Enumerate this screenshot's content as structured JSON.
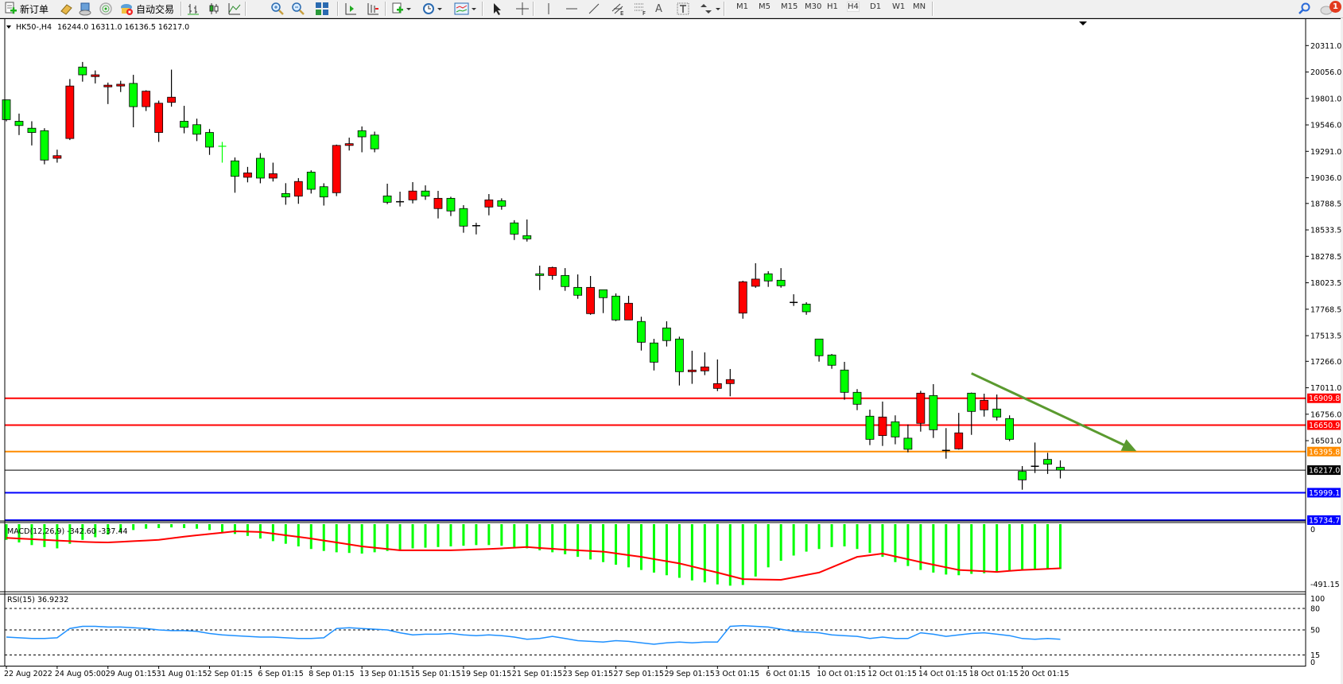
{
  "toolbar": {
    "new_order_label": "新订单",
    "auto_trading_label": "自动交易",
    "timeframes": [
      "M1",
      "M5",
      "M15",
      "M30",
      "H1",
      "H4",
      "D1",
      "W1",
      "MN"
    ],
    "active_timeframe": "H4",
    "notification_count": "1",
    "icons": [
      "new-order-icon",
      "market-watch-icon",
      "navigator-icon",
      "signals-icon",
      "auto-trading-icon",
      "bar-chart-icon",
      "candlestick-icon",
      "line-chart-icon",
      "zoom-in-icon",
      "zoom-out-icon",
      "tile-windows-icon",
      "auto-scroll-icon",
      "chart-shift-icon",
      "new-chart-icon",
      "periods-icon",
      "indicators-icon",
      "cursor-icon",
      "crosshair-icon",
      "vertical-line-icon",
      "horizontal-line-icon",
      "trendline-icon",
      "equidistant-channel-icon",
      "fibonacci-icon",
      "text-icon",
      "text-label-icon",
      "arrows-icon",
      "search-icon",
      "notifications-icon"
    ]
  },
  "chart_header": {
    "symbol": "HK50-,H4",
    "ohlc_text": "16244.0 16311.0 16136.5 16217.0"
  },
  "price_axis": {
    "labels": [
      "20311.0",
      "20056.0",
      "19801.0",
      "19546.0",
      "19291.0",
      "19036.0",
      "18788.5",
      "18533.5",
      "18278.5",
      "18023.5",
      "17768.5",
      "17513.5",
      "17266.0",
      "17011.0",
      "16756.0",
      "16501.0"
    ],
    "values": [
      20311.0,
      20056.0,
      19801.0,
      19546.0,
      19291.0,
      19036.0,
      18788.5,
      18533.5,
      18278.5,
      18023.5,
      17768.5,
      17513.5,
      17266.0,
      17011.0,
      16756.0,
      16501.0
    ]
  },
  "levels": [
    {
      "label": "16909.8",
      "value": 16909.8,
      "color": "#ff0000"
    },
    {
      "label": "16650.9",
      "value": 16650.9,
      "color": "#ff0000"
    },
    {
      "label": "16395.8",
      "value": 16395.8,
      "color": "#ff8c00"
    },
    {
      "label": "16217.0",
      "value": 16217.0,
      "color": "#000000"
    },
    {
      "label": "15999.1",
      "value": 15999.1,
      "color": "#0000ff"
    },
    {
      "label": "15734.7",
      "value": 15734.7,
      "color": "#0000ff"
    }
  ],
  "macd": {
    "title": "MACD(12,26,9) -342.60 -337.44",
    "axis_labels": [
      "0",
      "-491.15"
    ],
    "axis_values": [
      0,
      -491.15
    ],
    "histogram_color": "#00ff00",
    "signal_color": "#ff0000"
  },
  "rsi": {
    "title": "RSI(15) 36.9232",
    "axis_labels": [
      "100",
      "80",
      "50",
      "15",
      "0"
    ],
    "axis_values": [
      100,
      80,
      50,
      15,
      0
    ],
    "levels": [
      80,
      50,
      15
    ],
    "line_color": "#1e90ff"
  },
  "time_axis": {
    "labels": [
      "22 Aug 2022",
      "24 Aug 05:00",
      "29 Aug 01:15",
      "31 Aug 01:15",
      "2 Sep 01:15",
      "6 Sep 01:15",
      "8 Sep 01:15",
      "13 Sep 01:15",
      "15 Sep 01:15",
      "19 Sep 01:15",
      "21 Sep 01:15",
      "23 Sep 01:15",
      "27 Sep 01:15",
      "29 Sep 01:15",
      "3 Oct 01:15",
      "6 Oct 01:15",
      "10 Oct 01:15",
      "12 Oct 01:15",
      "14 Oct 01:15",
      "18 Oct 01:15",
      "20 Oct 01:15"
    ],
    "label_bar_step": 4
  },
  "chart_data": {
    "type": "candlestick",
    "symbol": "HK50-",
    "timeframe": "H4",
    "bullish_color": "#ff0000",
    "bearish_color": "#00ff00",
    "ylim": [
      15700,
      20400
    ],
    "ohlc": [
      [
        19788,
        19790,
        19580,
        19597
      ],
      [
        19581,
        19655,
        19448,
        19540
      ],
      [
        19514,
        19581,
        19348,
        19473
      ],
      [
        19490,
        19514,
        19166,
        19207
      ],
      [
        19224,
        19307,
        19182,
        19249
      ],
      [
        19415,
        19988,
        19400,
        19921
      ],
      [
        20104,
        20153,
        19963,
        20029
      ],
      [
        20012,
        20071,
        19946,
        20029
      ],
      [
        19913,
        19954,
        19747,
        19929
      ],
      [
        19921,
        19971,
        19863,
        19938
      ],
      [
        19946,
        20029,
        19523,
        19722
      ],
      [
        19722,
        19880,
        19680,
        19871
      ],
      [
        19473,
        19780,
        19382,
        19755
      ],
      [
        19763,
        20079,
        19722,
        19813
      ],
      [
        19581,
        19730,
        19465,
        19523
      ],
      [
        19548,
        19606,
        19390,
        19456
      ],
      [
        19473,
        19506,
        19257,
        19332
      ],
      [
        19340,
        19382,
        19182,
        19338
      ],
      [
        19199,
        19232,
        18892,
        19050
      ],
      [
        19041,
        19141,
        18992,
        19083
      ],
      [
        19224,
        19274,
        18983,
        19033
      ],
      [
        19033,
        19182,
        19000,
        19075
      ],
      [
        18884,
        18984,
        18776,
        18851
      ],
      [
        18859,
        19033,
        18785,
        19000
      ],
      [
        19091,
        19108,
        18884,
        18925
      ],
      [
        18950,
        18983,
        18768,
        18851
      ],
      [
        18892,
        19356,
        18859,
        19348
      ],
      [
        19348,
        19423,
        19299,
        19365
      ],
      [
        19490,
        19531,
        19282,
        19431
      ],
      [
        19448,
        19481,
        19282,
        19315
      ],
      [
        18861,
        18979,
        18782,
        18800
      ],
      [
        18805,
        18902,
        18759,
        18805
      ],
      [
        18823,
        18994,
        18789,
        18908
      ],
      [
        18908,
        18963,
        18823,
        18859
      ],
      [
        18739,
        18910,
        18644,
        18838
      ],
      [
        18838,
        18853,
        18667,
        18716
      ],
      [
        18739,
        18772,
        18506,
        18570
      ],
      [
        18574,
        18602,
        18490,
        18574
      ],
      [
        18754,
        18879,
        18674,
        18823
      ],
      [
        18815,
        18838,
        18728,
        18762
      ],
      [
        18601,
        18627,
        18436,
        18493
      ],
      [
        18478,
        18634,
        18421,
        18447
      ],
      [
        18110,
        18189,
        17953,
        18094
      ],
      [
        18094,
        18179,
        18053,
        18171
      ],
      [
        18094,
        18165,
        17946,
        17987
      ],
      [
        17979,
        18104,
        17869,
        17903
      ],
      [
        17726,
        18089,
        17715,
        17979
      ],
      [
        17956,
        17956,
        17731,
        17880
      ],
      [
        17895,
        17921,
        17654,
        17665
      ],
      [
        17665,
        17898,
        17665,
        17826
      ],
      [
        17650,
        17696,
        17370,
        17450
      ],
      [
        17443,
        17483,
        17178,
        17258
      ],
      [
        17588,
        17652,
        17409,
        17466
      ],
      [
        17481,
        17504,
        17033,
        17166
      ],
      [
        17166,
        17368,
        17049,
        17182
      ],
      [
        17174,
        17352,
        17133,
        17212
      ],
      [
        17005,
        17284,
        16979,
        17051
      ],
      [
        17051,
        17192,
        16929,
        17090
      ],
      [
        17731,
        18043,
        17677,
        18033
      ],
      [
        17990,
        18212,
        17975,
        18059
      ],
      [
        18110,
        18135,
        17984,
        18041
      ],
      [
        18048,
        18165,
        17976,
        17995
      ],
      [
        17834,
        17913,
        17800,
        17834
      ],
      [
        17818,
        17836,
        17715,
        17744
      ],
      [
        17481,
        17481,
        17263,
        17320
      ],
      [
        17327,
        17337,
        17194,
        17228
      ],
      [
        17182,
        17261,
        16895,
        16967
      ],
      [
        16967,
        16998,
        16795,
        16852
      ],
      [
        16737,
        16800,
        16458,
        16514
      ],
      [
        16550,
        16878,
        16450,
        16729
      ],
      [
        16683,
        16745,
        16466,
        16537
      ],
      [
        16525,
        16657,
        16389,
        16418
      ],
      [
        16668,
        16981,
        16588,
        16959
      ],
      [
        16936,
        17046,
        16527,
        16606
      ],
      [
        16407,
        16622,
        16327,
        16407
      ],
      [
        16422,
        16769,
        16415,
        16576
      ],
      [
        16959,
        16965,
        16557,
        16783
      ],
      [
        16798,
        16954,
        16733,
        16890
      ],
      [
        16806,
        16946,
        16695,
        16729
      ],
      [
        16714,
        16745,
        16496,
        16514
      ],
      [
        16205,
        16256,
        16028,
        16123
      ],
      [
        16254,
        16483,
        16189,
        16254
      ],
      [
        16320,
        16384,
        16180,
        16274
      ],
      [
        16244,
        16311,
        16136.5,
        16217
      ]
    ],
    "trendline": {
      "from": [
        76,
        17150
      ],
      "to": [
        89,
        16400
      ],
      "color": "#5a9a2f",
      "arrow": true
    },
    "macd_main": [
      -120,
      -140,
      -160,
      -175,
      -185,
      -150,
      -120,
      -100,
      -80,
      -60,
      -45,
      -35,
      -30,
      -25,
      -30,
      -35,
      -45,
      -60,
      -75,
      -90,
      -110,
      -130,
      -150,
      -170,
      -190,
      -205,
      -215,
      -220,
      -225,
      -215,
      -205,
      -195,
      -185,
      -180,
      -175,
      -170,
      -165,
      -160,
      -160,
      -165,
      -175,
      -185,
      -200,
      -215,
      -230,
      -250,
      -270,
      -290,
      -310,
      -330,
      -350,
      -370,
      -390,
      -410,
      -430,
      -445,
      -460,
      -470,
      -465,
      -400,
      -330,
      -280,
      -240,
      -210,
      -190,
      -175,
      -170,
      -190,
      -220,
      -250,
      -290,
      -320,
      -350,
      -370,
      -385,
      -390,
      -380,
      -375,
      -370,
      -360,
      -350,
      -345,
      -344,
      -342.6
    ],
    "macd_signal": [
      -105,
      -110,
      -115,
      -120,
      -125,
      -130,
      -135,
      -138,
      -140,
      -135,
      -130,
      -125,
      -120,
      -108,
      -96,
      -85,
      -75,
      -65,
      -55,
      -57,
      -60,
      -72,
      -85,
      -97,
      -110,
      -125,
      -140,
      -155,
      -170,
      -180,
      -190,
      -200,
      -200,
      -200,
      -200,
      -200,
      -197,
      -193,
      -190,
      -185,
      -180,
      -175,
      -182,
      -188,
      -195,
      -200,
      -205,
      -210,
      -223,
      -237,
      -250,
      -267,
      -283,
      -300,
      -323,
      -347,
      -370,
      -395,
      -420,
      -422,
      -424,
      -425,
      -407,
      -388,
      -370,
      -330,
      -290,
      -250,
      -238,
      -225,
      -247,
      -268,
      -290,
      -310,
      -330,
      -350,
      -355,
      -360,
      -365,
      -357,
      -350,
      -346,
      -342,
      -337.44
    ],
    "rsi": [
      40,
      39,
      38,
      38,
      39,
      52,
      55,
      55,
      54,
      54,
      53,
      52,
      50,
      49,
      49,
      48,
      45,
      43,
      42,
      41,
      40,
      40,
      39,
      38,
      38,
      39,
      52,
      53,
      52,
      51,
      50,
      46,
      43,
      44,
      44,
      45,
      43,
      42,
      43,
      42,
      40,
      37,
      38,
      41,
      38,
      35,
      34,
      33,
      35,
      34,
      32,
      30,
      32,
      33,
      32,
      33,
      33,
      55,
      56,
      55,
      54,
      51,
      48,
      47,
      46,
      43,
      42,
      41,
      38,
      40,
      38,
      38,
      46,
      44,
      41,
      43,
      45,
      46,
      44,
      42,
      38,
      37,
      38,
      36.9232
    ]
  }
}
